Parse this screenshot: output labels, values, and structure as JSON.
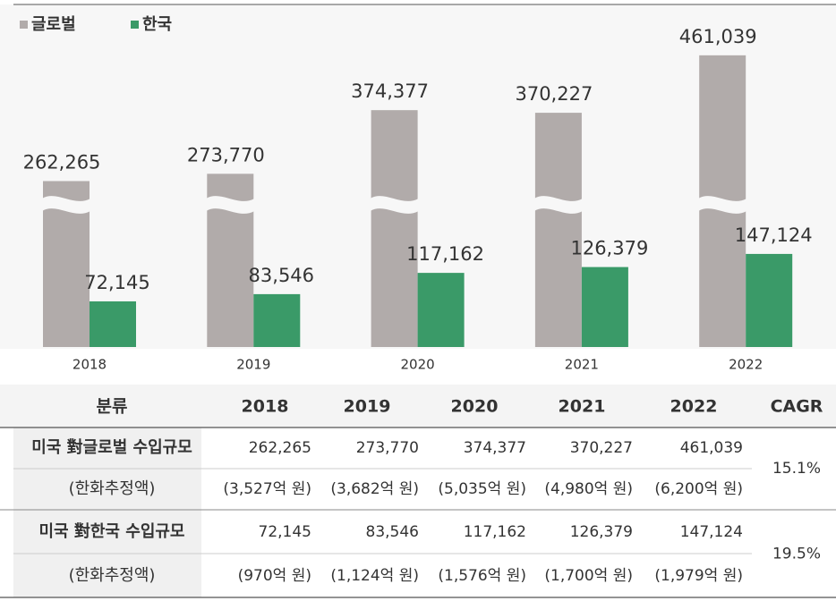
{
  "chart_data": {
    "type": "bar",
    "categories": [
      "2018",
      "2019",
      "2020",
      "2021",
      "2022"
    ],
    "series": [
      {
        "name": "글로벌",
        "color": "#b1abaa",
        "values": [
          262265,
          273770,
          374377,
          370227,
          461039
        ],
        "value_labels": [
          "262,265",
          "273,770",
          "374,377",
          "370,227",
          "461,039"
        ]
      },
      {
        "name": "한국",
        "color": "#3a9a68",
        "values": [
          72145,
          83546,
          117162,
          126379,
          147124
        ],
        "value_labels": [
          "72,145",
          "83,546",
          "117,162",
          "126,379",
          "147,124"
        ]
      }
    ],
    "ylim": [
      0,
      540000
    ],
    "legend": "top-left"
  },
  "table": {
    "header": [
      "분류",
      "2018",
      "2019",
      "2020",
      "2021",
      "2022",
      "CAGR"
    ],
    "groups": [
      {
        "rows": [
          [
            "미국 對글로벌 수입규모",
            "262,265",
            "273,770",
            "374,377",
            "370,227",
            "461,039"
          ],
          [
            "(한화추정액)",
            "(3,527억 원)",
            "(3,682억 원)",
            "(5,035억 원)",
            "(4,980억 원)",
            "(6,200억 원)"
          ]
        ],
        "cagr": "15.1%"
      },
      {
        "rows": [
          [
            "미국 對한국 수입규모",
            "72,145",
            "83,546",
            "117,162",
            "126,379",
            "147,124"
          ],
          [
            "(한화추정액)",
            "(970억 원)",
            "(1,124억 원)",
            "(1,576억 원)",
            "(1,700억 원)",
            "(1,979억 원)"
          ]
        ],
        "cagr": "19.5%"
      }
    ]
  }
}
